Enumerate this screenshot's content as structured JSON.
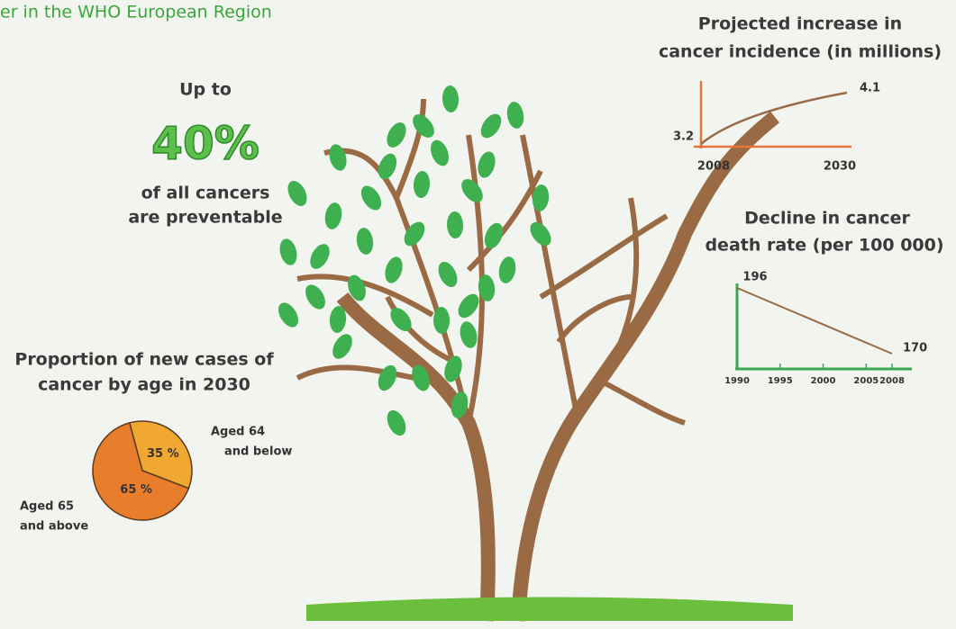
{
  "header": {
    "title": "er in the WHO European Region"
  },
  "prevent": {
    "lead": "Up to",
    "value": 40,
    "value_label": "40%",
    "lines": [
      "of all cancers",
      "are preventable"
    ]
  },
  "incidence": {
    "title": [
      "Projected increase in",
      "cancer incidence (in millions)"
    ],
    "x": [
      "2008",
      "2030"
    ],
    "values": [
      3.2,
      4.1
    ],
    "color": "#e8733a"
  },
  "death_rate": {
    "title": [
      "Decline in cancer",
      "death rate (per 100 000)"
    ],
    "xticks": [
      1990,
      1995,
      2000,
      2005,
      2008
    ],
    "values": [
      196,
      170
    ],
    "color": "#3aa655"
  },
  "pie": {
    "title": [
      "Proportion of new cases of",
      "cancer by age in 2030"
    ],
    "values": [
      35,
      65
    ],
    "value_labels": [
      "35 %",
      "65 %"
    ],
    "labels": [
      [
        "Aged 64",
        "and below"
      ],
      [
        "Aged 65",
        "and above"
      ]
    ],
    "colors": [
      "#f0a832",
      "#e87e2c"
    ]
  }
}
